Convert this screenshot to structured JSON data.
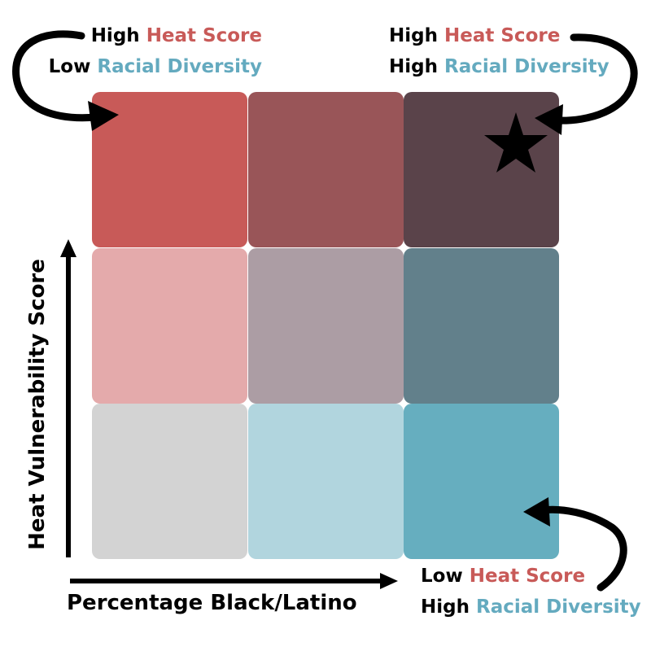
{
  "grid": {
    "rows": [
      [
        {
          "color": "#c85a58"
        },
        {
          "color": "#995558"
        },
        {
          "color": "#5a434a",
          "marker": "star-icon"
        }
      ],
      [
        {
          "color": "#e4aaab"
        },
        {
          "color": "#ac9da4"
        },
        {
          "color": "#62808b"
        }
      ],
      [
        {
          "color": "#d3d3d3"
        },
        {
          "color": "#b1d5de"
        },
        {
          "color": "#66aebf"
        }
      ]
    ]
  },
  "annotations": {
    "top_left": {
      "line1": {
        "prefix": "High",
        "term": "Heat Score"
      },
      "line2": {
        "prefix": "Low",
        "term": "Racial Diversity"
      }
    },
    "top_right": {
      "line1": {
        "prefix": "High",
        "term": "Heat Score"
      },
      "line2": {
        "prefix": "High",
        "term": "Racial Diversity"
      }
    },
    "bottom_right": {
      "line1": {
        "prefix": "Low",
        "term": "Heat Score"
      },
      "line2": {
        "prefix": "High",
        "term": "Racial Diversity"
      }
    }
  },
  "axes": {
    "y_title": "Heat Vulnerability Score",
    "x_title": "Percentage Black/Latino"
  },
  "colors": {
    "heat": "#c85a58",
    "diversity": "#64aabf"
  }
}
